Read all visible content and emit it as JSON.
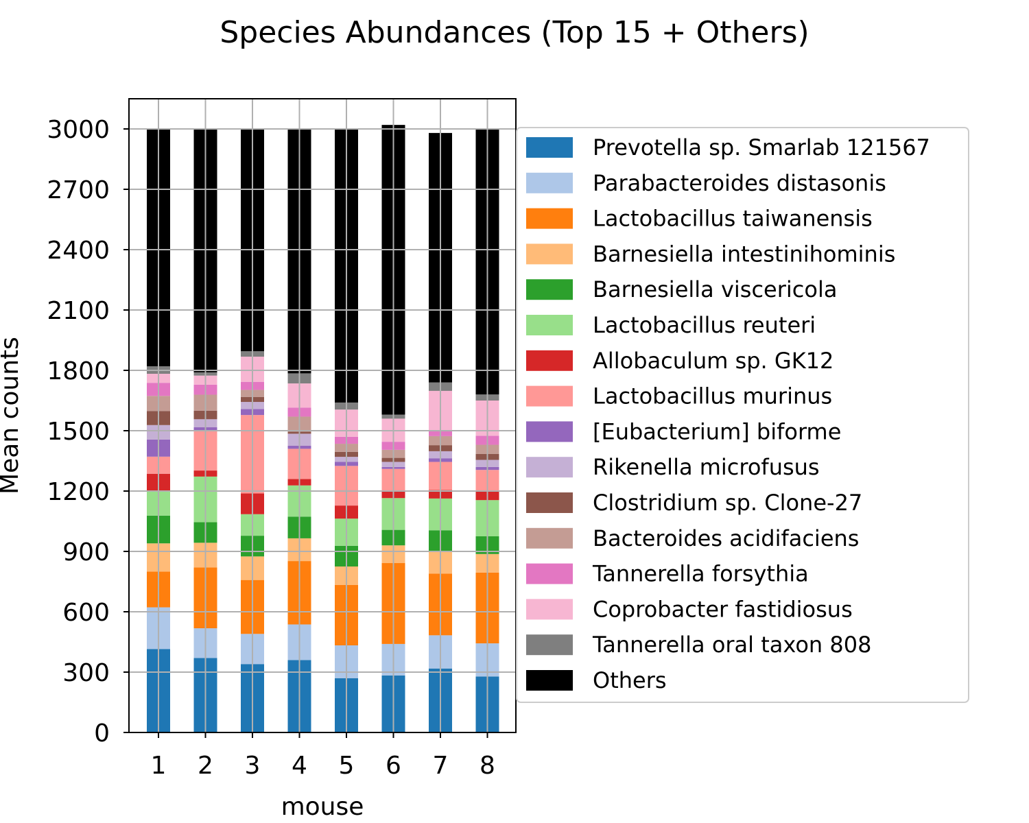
{
  "chart_data": {
    "type": "bar",
    "stacked": true,
    "title": "Species Abundances (Top 15  + Others)",
    "xlabel": "mouse",
    "ylabel": "Mean counts",
    "ylim": [
      0,
      3150
    ],
    "yticks": [
      0,
      300,
      600,
      900,
      1200,
      1500,
      1800,
      2100,
      2400,
      2700,
      3000
    ],
    "categories": [
      "1",
      "2",
      "3",
      "4",
      "5",
      "6",
      "7",
      "8"
    ],
    "grid": true,
    "legend_position": "right",
    "series": [
      {
        "name": "Prevotella sp. Smarlab 121567",
        "color": "#1f77b4",
        "values": [
          415,
          370,
          340,
          360,
          270,
          283,
          318,
          278
        ]
      },
      {
        "name": "Parabacteroides distasonis",
        "color": "#aec7e8",
        "values": [
          207,
          148,
          150,
          177,
          163,
          157,
          165,
          165
        ]
      },
      {
        "name": "Lactobacillus taiwanensis",
        "color": "#ff7f0e",
        "values": [
          178,
          302,
          268,
          315,
          300,
          402,
          307,
          352
        ]
      },
      {
        "name": "Barnesiella intestinihominis",
        "color": "#ffbb78",
        "values": [
          140,
          123,
          117,
          113,
          92,
          88,
          112,
          92
        ]
      },
      {
        "name": "Barnesiella viscericola",
        "color": "#2ca02c",
        "values": [
          138,
          102,
          103,
          108,
          103,
          77,
          103,
          88
        ]
      },
      {
        "name": "Lactobacillus reuteri",
        "color": "#98df8a",
        "values": [
          125,
          227,
          107,
          155,
          135,
          158,
          158,
          180
        ]
      },
      {
        "name": "Allobaculum sp. GK12",
        "color": "#d62728",
        "values": [
          83,
          30,
          103,
          32,
          65,
          32,
          42,
          45
        ]
      },
      {
        "name": "Lactobacillus murinus",
        "color": "#ff9896",
        "values": [
          85,
          200,
          390,
          150,
          197,
          113,
          140,
          105
        ]
      },
      {
        "name": "[Eubacterium] biforme",
        "color": "#9467bd",
        "values": [
          85,
          15,
          30,
          15,
          20,
          10,
          18,
          15
        ]
      },
      {
        "name": "Rikenella microfusus",
        "color": "#c5b0d5",
        "values": [
          72,
          40,
          35,
          60,
          25,
          25,
          35,
          35
        ]
      },
      {
        "name": "Clostridium sp. Clone-27",
        "color": "#8c564b",
        "values": [
          70,
          42,
          25,
          10,
          25,
          20,
          30,
          30
        ]
      },
      {
        "name": "Bacteroides acidifaciens",
        "color": "#c49c94",
        "values": [
          75,
          80,
          35,
          75,
          40,
          40,
          45,
          45
        ]
      },
      {
        "name": "Tannerella forsythia",
        "color": "#e377c2",
        "values": [
          65,
          50,
          40,
          45,
          35,
          40,
          30,
          45
        ]
      },
      {
        "name": "Coprobacter fastidiosus",
        "color": "#f7b6d2",
        "values": [
          45,
          45,
          125,
          120,
          135,
          115,
          195,
          175
        ]
      },
      {
        "name": "Tannerella oral taxon 808",
        "color": "#7f7f7f",
        "values": [
          37,
          16,
          27,
          50,
          35,
          20,
          42,
          30
        ]
      },
      {
        "name": "Others",
        "color": "#000000",
        "values": [
          1180,
          1210,
          1105,
          1215,
          1360,
          1440,
          1240,
          1320
        ]
      }
    ]
  }
}
